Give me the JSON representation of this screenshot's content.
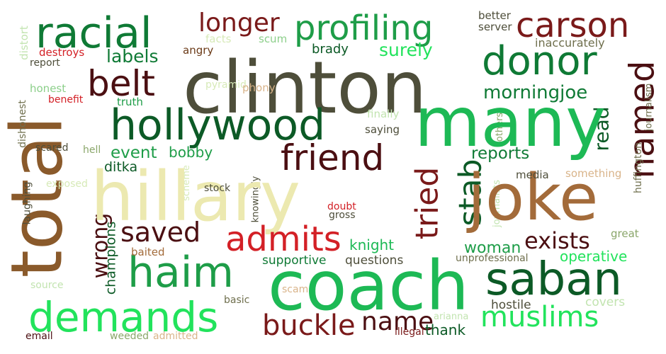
{
  "colors": {
    "background": "#ffffff",
    "palette": [
      "#4e4e3a",
      "#eceab0",
      "#1e9d48",
      "#0c5a26",
      "#7a1a1a",
      "#a36b3a",
      "#d32026",
      "#22e35c",
      "#6b3a17",
      "#b8e8a0",
      "#d9b48a",
      "#6f6f4d",
      "#4b0f12",
      "#8ccf8a"
    ]
  },
  "words": {
    "clinton": "clinton",
    "hillary": "hillary",
    "coach": "coach",
    "many": "many",
    "joke": "joke",
    "total": "total",
    "racial": "racial",
    "profiling": "profiling",
    "carson": "carson",
    "donor": "donor",
    "hollywood": "hollywood",
    "haim": "haim",
    "demands": "demands",
    "saban": "saban",
    "friend": "friend",
    "admits": "admits",
    "muslims": "muslims",
    "buckle": "buckle",
    "belt": "belt",
    "longer": "longer",
    "saved": "saved",
    "tried": "tried",
    "stab": "stab",
    "named": "named",
    "surely": "surely",
    "morningjoe": "morningjoe",
    "exists": "exists",
    "reports": "reports",
    "event": "event",
    "bobby": "bobby",
    "labels": "labels",
    "wrong": "wrong",
    "name": "name",
    "woman": "woman",
    "knight": "knight",
    "ditka": "ditka",
    "read": "read",
    "operative": "operative",
    "champions": "champions",
    "supportive": "supportive",
    "questions": "questions",
    "thank": "thank",
    "hostile": "hostile",
    "covers": "covers",
    "facts": "facts",
    "scum": "scum",
    "angry": "angry",
    "brady": "brady",
    "better": "better",
    "server": "server",
    "inaccurately": "inaccurately",
    "distort": "distort",
    "destroys": "destroys",
    "report": "report",
    "honest": "honest",
    "pyramid": "pyramid",
    "phony": "phony",
    "benefit": "benefit",
    "truth": "truth",
    "dishonest": "dishonest",
    "finally": "finally",
    "saying": "saying",
    "others": "others",
    "huffington": "huffington",
    "journalism": "journalism",
    "scared": "scared",
    "hell": "hell",
    "laughing": "laughing",
    "exposed": "exposed",
    "scheme": "scheme",
    "stock": "stock",
    "knowingly": "knowingly",
    "journalists": "journalists",
    "media": "media",
    "something": "something",
    "doubt": "doubt",
    "gross": "gross",
    "baited": "baited",
    "unprofessional": "unprofessional",
    "great": "great",
    "source": "source",
    "scam": "scam",
    "basic": "basic",
    "arianna": "arianna",
    "illegal": "illegal",
    "email": "email",
    "weeded": "weeded",
    "admitted": "admitted"
  }
}
